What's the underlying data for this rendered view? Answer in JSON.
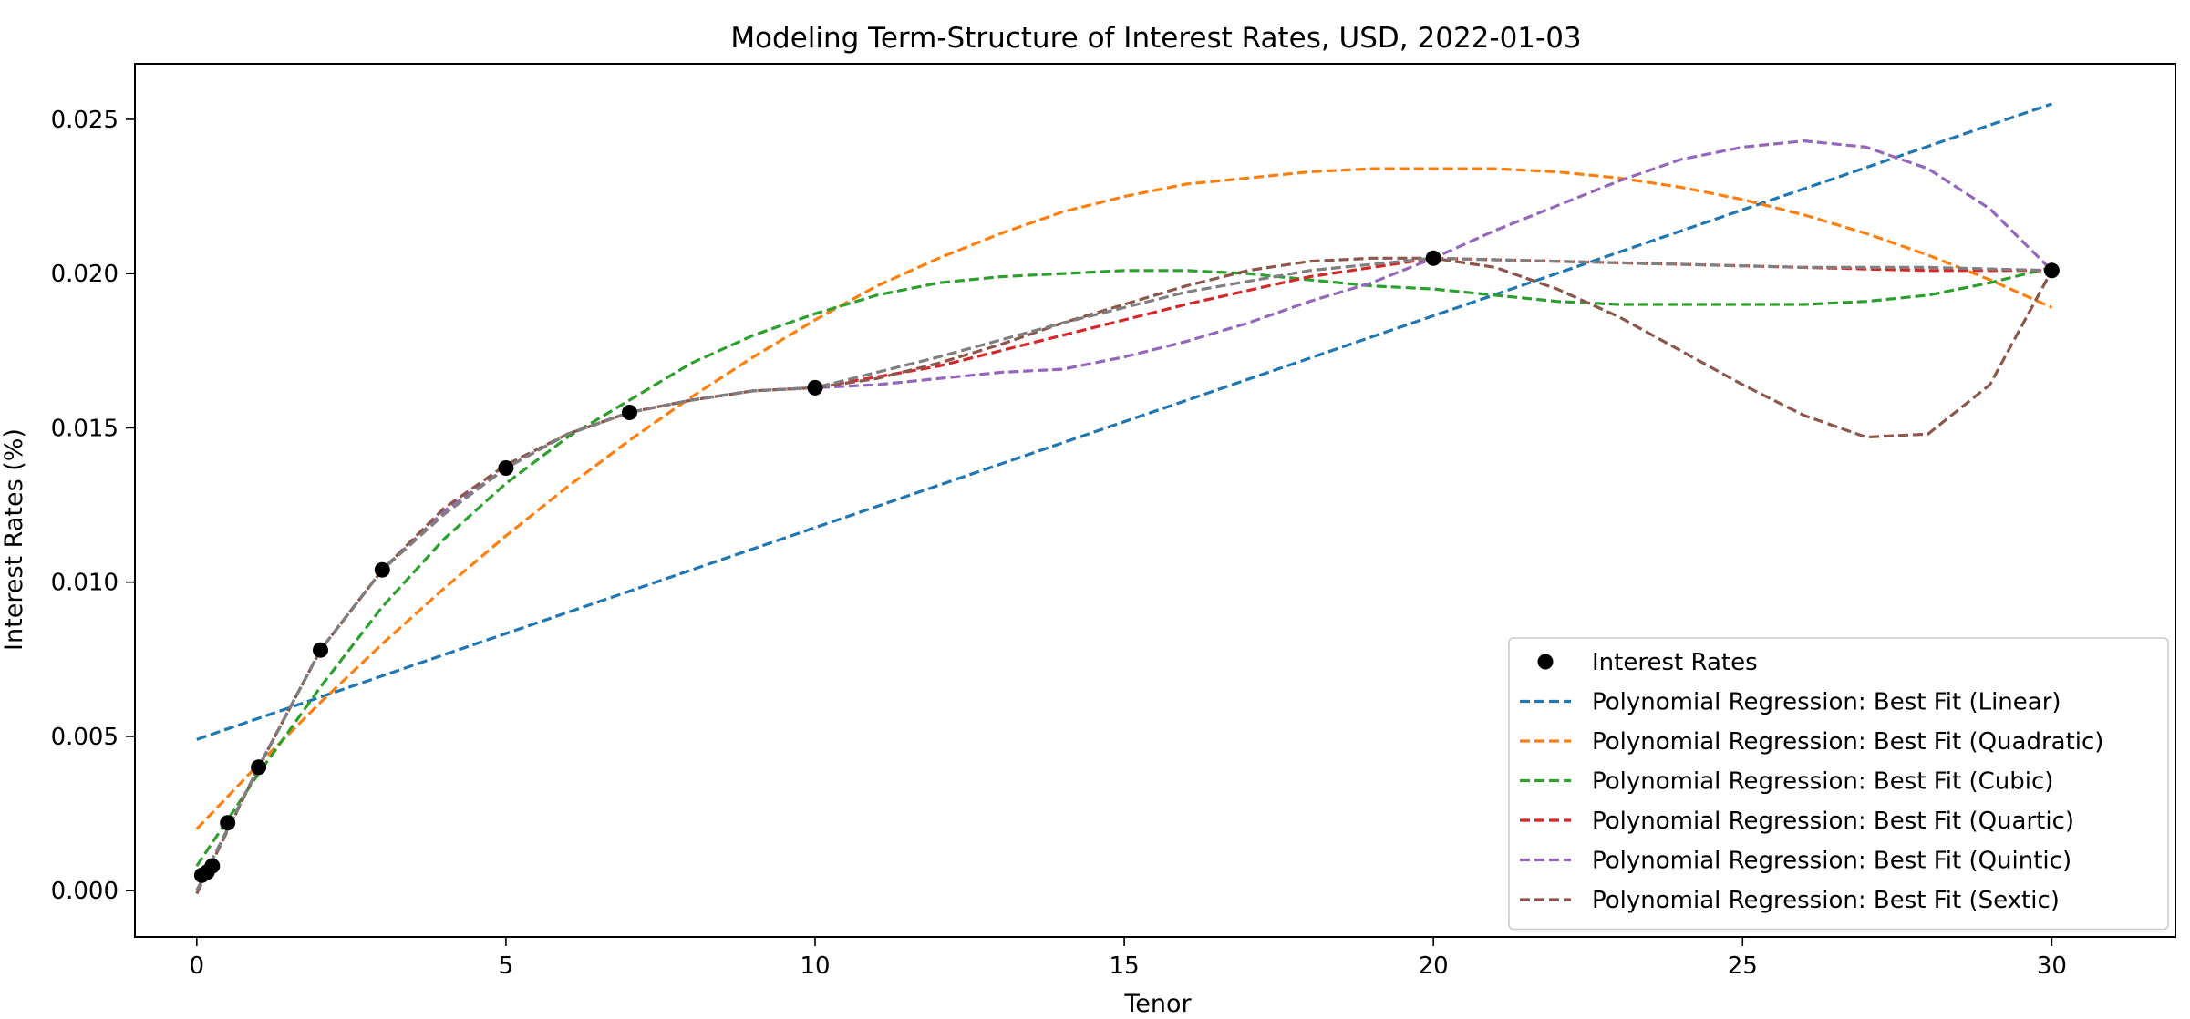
{
  "chart_data": {
    "type": "line",
    "title": "Modeling Term-Structure of Interest Rates, USD, 2022-01-03",
    "xlabel": "Tenor",
    "ylabel": "Interest Rates (%)",
    "xlim": [
      -1,
      32
    ],
    "ylim": [
      -0.0015,
      0.0268
    ],
    "x_ticks": [
      0,
      5,
      10,
      15,
      20,
      25,
      30
    ],
    "y_ticks": [
      0.0,
      0.005,
      0.01,
      0.015,
      0.02,
      0.025
    ],
    "x_tick_labels": [
      "0",
      "5",
      "10",
      "15",
      "20",
      "25",
      "30"
    ],
    "y_tick_labels": [
      "0.000",
      "0.005",
      "0.010",
      "0.015",
      "0.020",
      "0.025"
    ],
    "grid": false,
    "legend_position": "lower-right",
    "scatter": {
      "name": "Interest Rates",
      "color": "#000000",
      "x": [
        0.083,
        0.167,
        0.25,
        0.5,
        1,
        2,
        3,
        5,
        7,
        10,
        20,
        30
      ],
      "y": [
        0.0005,
        0.0006,
        0.0008,
        0.0022,
        0.004,
        0.0078,
        0.0104,
        0.0137,
        0.0155,
        0.0163,
        0.0205,
        0.0201
      ]
    },
    "series": [
      {
        "name": "Polynomial Regression: Best Fit (Linear)",
        "color": "#1f77b4",
        "x": [
          0,
          30
        ],
        "y": [
          0.0049,
          0.0255
        ]
      },
      {
        "name": "Polynomial Regression: Best Fit (Quadratic)",
        "color": "#ff7f0e",
        "x": [
          0,
          1,
          2,
          3,
          4,
          5,
          6,
          7,
          8,
          9,
          10,
          11,
          12,
          13,
          14,
          15,
          16,
          17,
          18,
          19,
          20,
          21,
          22,
          23,
          24,
          25,
          26,
          27,
          28,
          29,
          30
        ],
        "y": [
          0.002,
          0.0041,
          0.0061,
          0.008,
          0.0098,
          0.0115,
          0.0131,
          0.0146,
          0.016,
          0.0173,
          0.0185,
          0.0196,
          0.0205,
          0.0213,
          0.022,
          0.0225,
          0.0229,
          0.0231,
          0.0233,
          0.0234,
          0.0234,
          0.0234,
          0.0233,
          0.0231,
          0.0228,
          0.0224,
          0.0219,
          0.0213,
          0.0206,
          0.0198,
          0.0189
        ]
      },
      {
        "name": "Polynomial Regression: Best Fit (Cubic)",
        "color": "#2ca02c",
        "x": [
          0,
          1,
          2,
          3,
          4,
          5,
          6,
          7,
          8,
          9,
          10,
          11,
          12,
          13,
          14,
          15,
          16,
          17,
          18,
          19,
          20,
          21,
          22,
          23,
          24,
          25,
          26,
          27,
          28,
          29,
          30
        ],
        "y": [
          0.0008,
          0.0038,
          0.0066,
          0.0092,
          0.0114,
          0.0132,
          0.0147,
          0.0159,
          0.0171,
          0.018,
          0.0187,
          0.0193,
          0.0197,
          0.0199,
          0.02,
          0.0201,
          0.0201,
          0.02,
          0.0198,
          0.0196,
          0.0195,
          0.0193,
          0.0191,
          0.019,
          0.019,
          0.019,
          0.019,
          0.0191,
          0.0193,
          0.0197,
          0.0202
        ]
      },
      {
        "name": "Polynomial Regression: Best Fit (Quartic)",
        "color": "#d62728",
        "x": [
          0,
          1,
          2,
          3,
          4,
          5,
          6,
          7,
          8,
          9,
          10,
          12,
          14,
          16,
          18,
          20,
          22,
          24,
          26,
          28,
          30
        ],
        "y": [
          0.0,
          0.004,
          0.0078,
          0.0104,
          0.0122,
          0.0137,
          0.0148,
          0.0155,
          0.0159,
          0.0162,
          0.0163,
          0.017,
          0.018,
          0.019,
          0.0199,
          0.0205,
          0.0204,
          0.0203,
          0.0202,
          0.0201,
          0.0201
        ]
      },
      {
        "name": "Polynomial Regression: Best Fit (Quintic)",
        "color": "#9467bd",
        "x": [
          0,
          1,
          2,
          3,
          4,
          5,
          6,
          7,
          8,
          9,
          10,
          11,
          12,
          13,
          14,
          15,
          16,
          17,
          18,
          19,
          20,
          21,
          22,
          23,
          24,
          25,
          26,
          27,
          28,
          29,
          30
        ],
        "y": [
          0.0,
          0.004,
          0.0078,
          0.0104,
          0.0123,
          0.0137,
          0.0148,
          0.0155,
          0.0159,
          0.0162,
          0.0163,
          0.0164,
          0.0166,
          0.0168,
          0.0169,
          0.0173,
          0.0178,
          0.0184,
          0.0191,
          0.0197,
          0.0205,
          0.0214,
          0.0222,
          0.023,
          0.0237,
          0.0241,
          0.0243,
          0.0241,
          0.0234,
          0.0221,
          0.0201
        ]
      },
      {
        "name": "Polynomial Regression: Best Fit (Sextic)",
        "color": "#8c564b",
        "x": [
          0,
          1,
          2,
          3,
          4,
          5,
          6,
          7,
          8,
          9,
          10,
          11,
          12,
          13,
          14,
          15,
          16,
          17,
          18,
          19,
          20,
          21,
          22,
          23,
          24,
          25,
          26,
          27,
          28,
          29,
          30
        ],
        "y": [
          -0.0001,
          0.004,
          0.0078,
          0.0104,
          0.0124,
          0.0138,
          0.0148,
          0.0155,
          0.0159,
          0.0162,
          0.0163,
          0.0166,
          0.0171,
          0.0177,
          0.0184,
          0.019,
          0.0196,
          0.0201,
          0.0204,
          0.0205,
          0.0205,
          0.0202,
          0.0195,
          0.0186,
          0.0175,
          0.0164,
          0.0154,
          0.0147,
          0.0148,
          0.0164,
          0.0201
        ]
      },
      {
        "name": "",
        "color": "#7f7f7f",
        "x": [
          0,
          1,
          2,
          3,
          4,
          5,
          6,
          7,
          8,
          9,
          10,
          12,
          14,
          16,
          18,
          20,
          22,
          24,
          26,
          28,
          30
        ],
        "y": [
          0.0,
          0.004,
          0.0078,
          0.0104,
          0.0122,
          0.0137,
          0.0148,
          0.0155,
          0.0159,
          0.0162,
          0.0163,
          0.0173,
          0.0184,
          0.0194,
          0.0201,
          0.0205,
          0.0204,
          0.0203,
          0.0202,
          0.0202,
          0.0201
        ]
      }
    ]
  }
}
